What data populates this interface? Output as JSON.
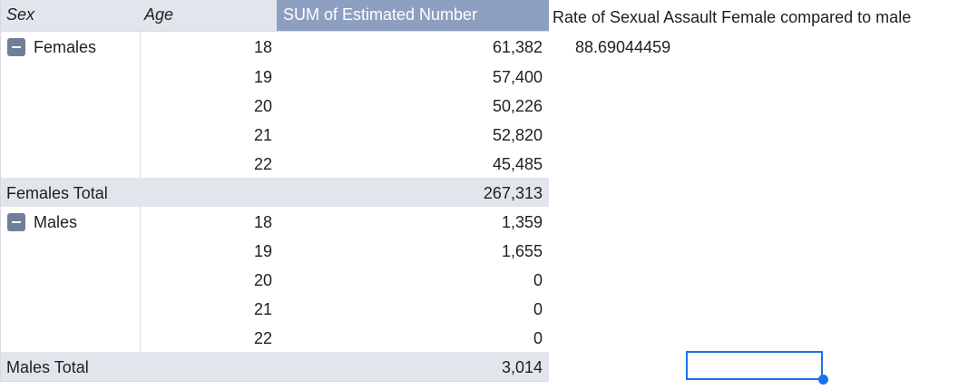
{
  "headers": {
    "sex": "Sex",
    "age": "Age",
    "sum": "SUM of Estimated Number",
    "rate": "Rate of Sexual Assault Female compared to male"
  },
  "rate_value": "88.69044459",
  "groups": [
    {
      "label": "Females",
      "rows": [
        {
          "age": "18",
          "value": "61,382"
        },
        {
          "age": "19",
          "value": "57,400"
        },
        {
          "age": "20",
          "value": "50,226"
        },
        {
          "age": "21",
          "value": "52,820"
        },
        {
          "age": "22",
          "value": "45,485"
        }
      ],
      "total_label": "Females Total",
      "total_value": "267,313"
    },
    {
      "label": "Males",
      "rows": [
        {
          "age": "18",
          "value": "1,359"
        },
        {
          "age": "19",
          "value": "1,655"
        },
        {
          "age": "20",
          "value": "0"
        },
        {
          "age": "21",
          "value": "0"
        },
        {
          "age": "22",
          "value": "0"
        }
      ],
      "total_label": "Males Total",
      "total_value": "3,014"
    }
  ],
  "colors": {
    "header_bg": "#e2e6ec",
    "value_header_bg": "#8d9fc1",
    "selection": "#1a73e8"
  }
}
